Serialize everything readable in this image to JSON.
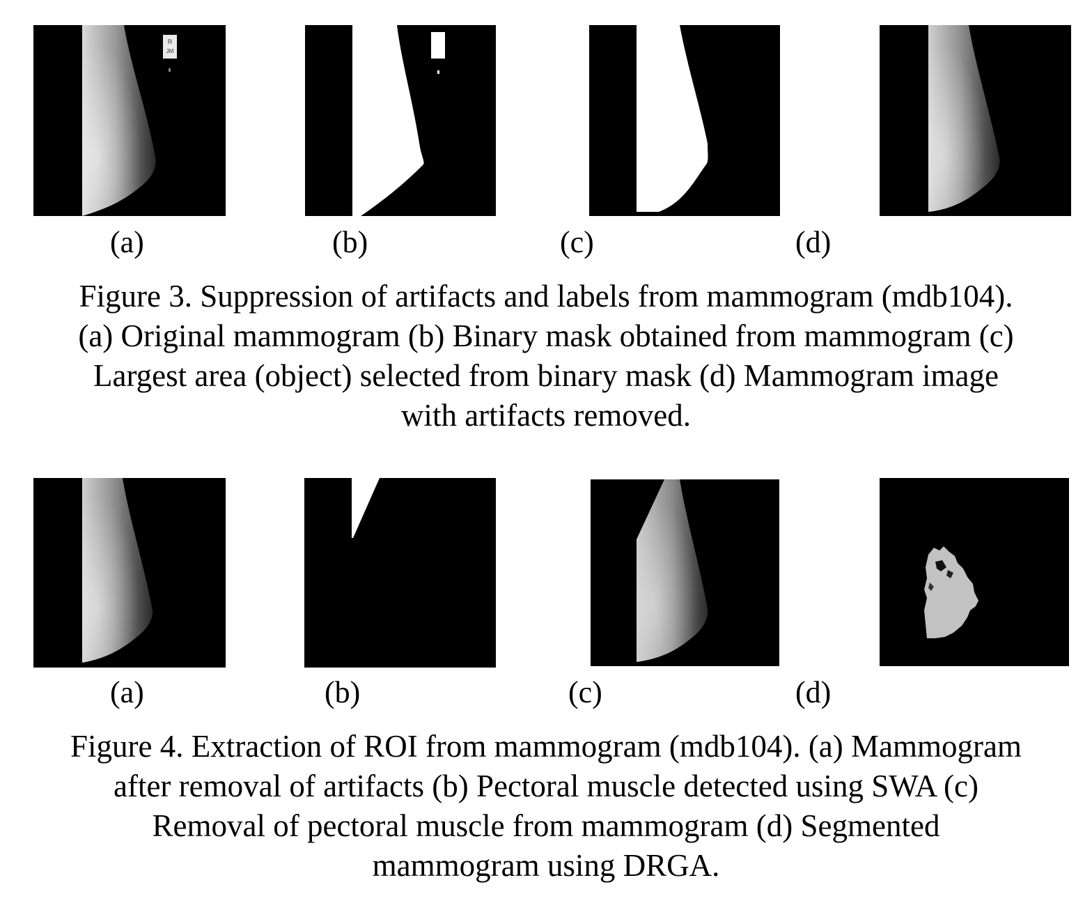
{
  "figure3": {
    "labels": [
      "(a)",
      "(b)",
      "(c)",
      "(d)"
    ],
    "marker_text": [
      "R",
      "JM"
    ],
    "caption_lines": [
      "Figure 3. Suppression of artifacts and labels from mammogram (mdb104).",
      "(a) Original mammogram (b) Binary mask obtained from mammogram (c)",
      "Largest area (object) selected from binary mask (d) Mammogram image",
      "with artifacts removed."
    ]
  },
  "figure4": {
    "labels": [
      "(a)",
      "(b)",
      "(c)",
      "(d)"
    ],
    "caption_lines": [
      "Figure 4. Extraction of ROI from mammogram (mdb104). (a) Mammogram",
      "after removal of artifacts (b) Pectoral muscle detected using SWA (c)",
      "Removal of pectoral muscle from mammogram (d) Segmented",
      "mammogram using DRGA."
    ]
  }
}
